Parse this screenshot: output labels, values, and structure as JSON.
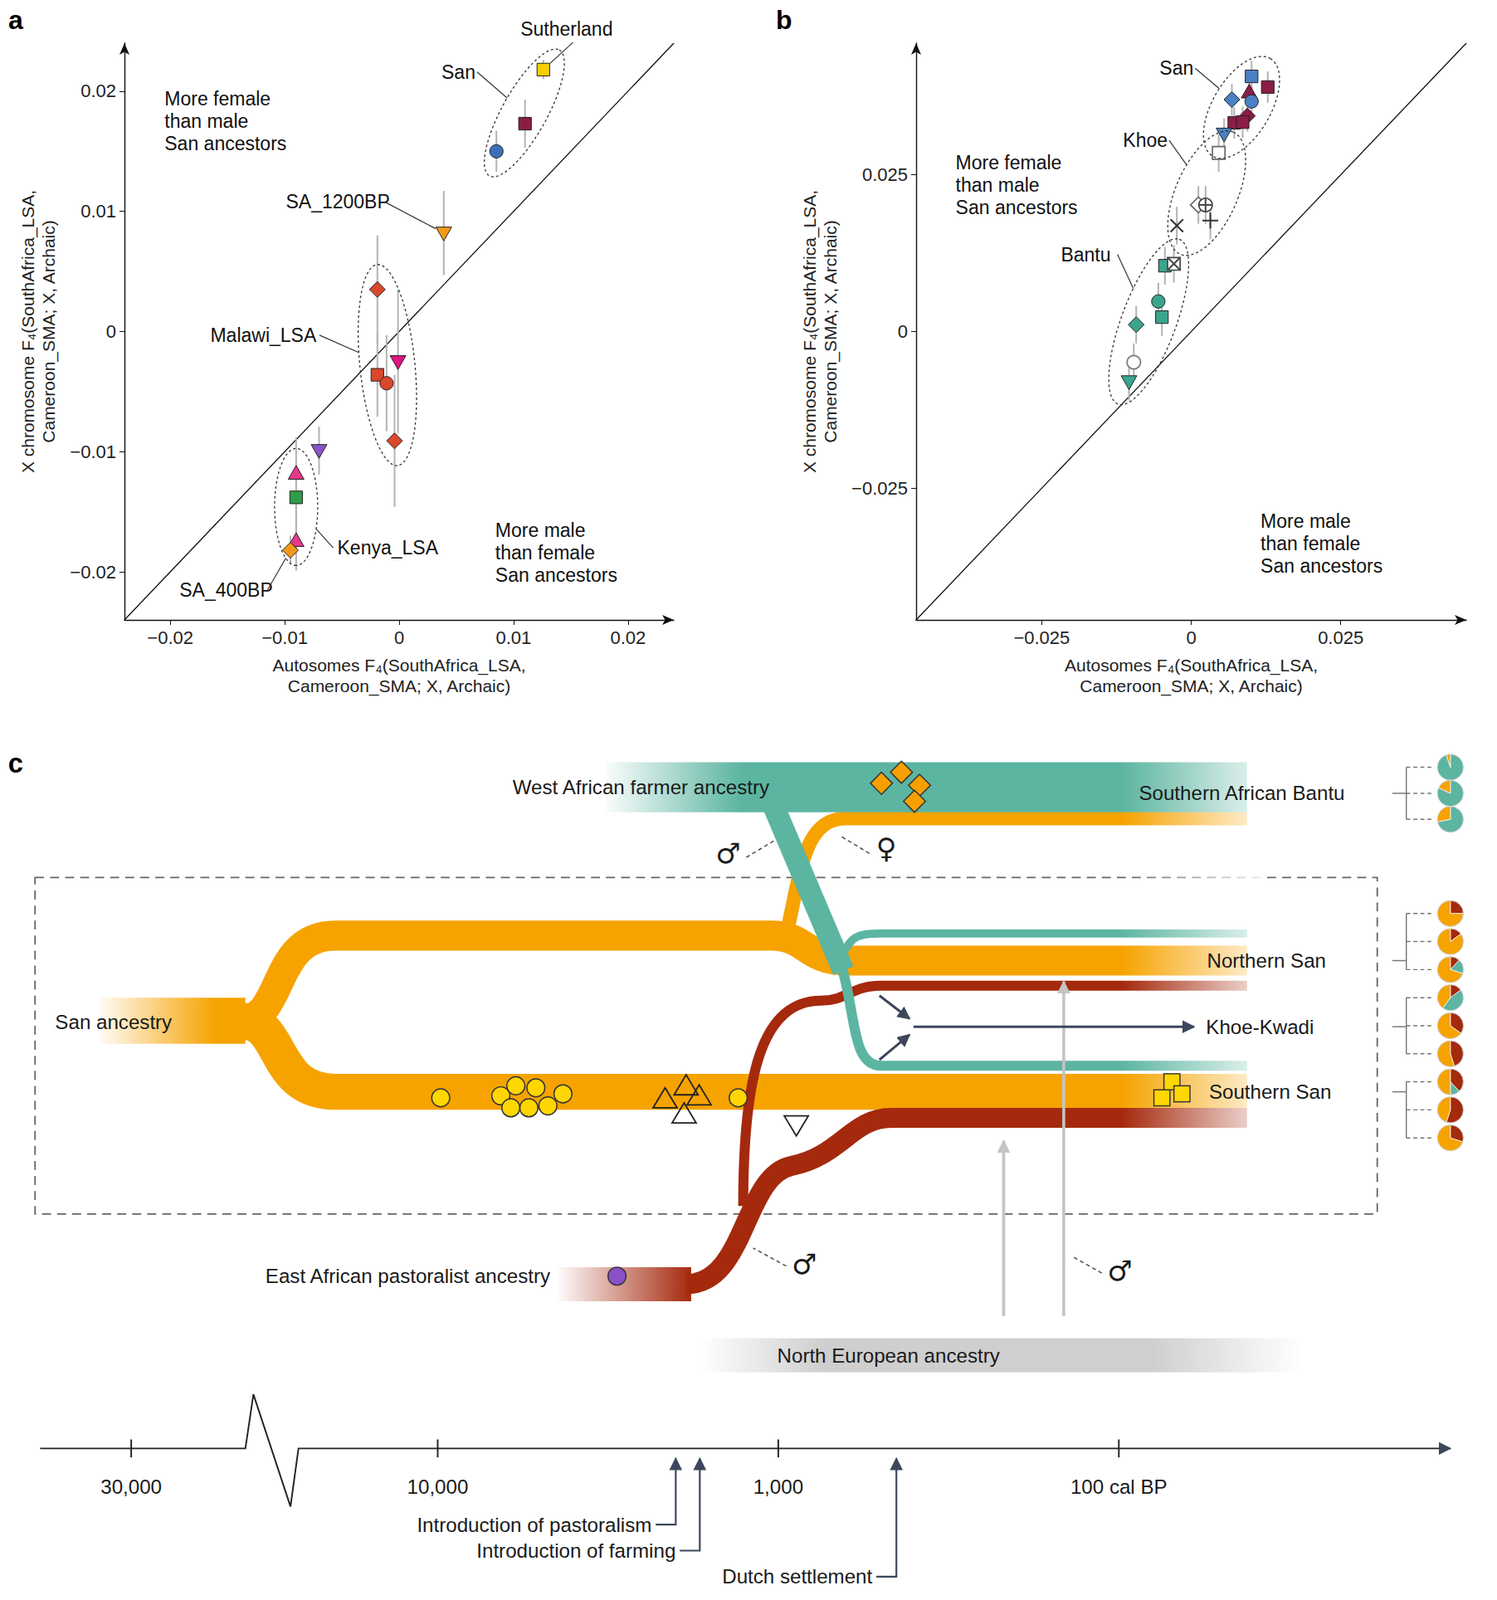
{
  "chart_data": [
    {
      "type": "scatter",
      "panel": "a",
      "x_label": "Autosomes F₄(SouthAfrica_LSA, Cameroon_SMA; X, Archaic)",
      "y_label": "X chromosome F₄(SouthAfrica_LSA, Cameroon_SMA; X, Archaic)",
      "xlim": [
        -0.024,
        0.024
      ],
      "ylim": [
        -0.024,
        0.024
      ],
      "xticks": [
        {
          "value": -0.02,
          "label": "−0.02"
        },
        {
          "value": -0.01,
          "label": "−0.01"
        },
        0,
        0.01,
        0.02
      ],
      "yticks": [
        {
          "value": -0.02,
          "label": "−0.02"
        },
        {
          "value": -0.01,
          "label": "−0.01"
        },
        0,
        0.01,
        0.02
      ],
      "grid": false,
      "points": [
        {
          "x": 0.0126,
          "y": 0.0218,
          "y_err": 0.0008,
          "color": "#f5cf00",
          "marker": "square"
        },
        {
          "x": 0.011,
          "y": 0.0173,
          "y_err": 0.002,
          "color": "#8b1c46",
          "marker": "square"
        },
        {
          "x": 0.0085,
          "y": 0.015,
          "y_err": 0.0017,
          "color": "#3b6fb6",
          "marker": "circle"
        },
        {
          "x": 0.0039,
          "y": 0.0082,
          "y_err": 0.0035,
          "color": "#f49a1a",
          "marker": "triangle-down"
        },
        {
          "x": -0.0019,
          "y": 0.0035,
          "y_err": 0.0045,
          "color": "#d9482b",
          "marker": "diamond"
        },
        {
          "x": -0.0019,
          "y": -0.0036,
          "y_err": 0.0035,
          "color": "#d9482b",
          "marker": "square"
        },
        {
          "x": -0.0011,
          "y": -0.0043,
          "y_err": 0.004,
          "color": "#d9482b",
          "marker": "circle"
        },
        {
          "x": -0.0001,
          "y": -0.0025,
          "y_err": 0.006,
          "color": "#e0137f",
          "marker": "triangle-down"
        },
        {
          "x": -0.0004,
          "y": -0.0091,
          "y_err": 0.0055,
          "color": "#d9482b",
          "marker": "diamond"
        },
        {
          "x": -0.007,
          "y": -0.0099,
          "y_err": 0.002,
          "color": "#8c52c8",
          "marker": "triangle-down"
        },
        {
          "x": -0.009,
          "y": -0.0118,
          "y_err": 0.003,
          "color": "#e33a8a",
          "marker": "triangle"
        },
        {
          "x": -0.009,
          "y": -0.0138,
          "y_err": 0.0025,
          "color": "#2e9d48",
          "marker": "square"
        },
        {
          "x": -0.009,
          "y": -0.0174,
          "y_err": 0.0025,
          "color": "#e33a8a",
          "marker": "triangle"
        },
        {
          "x": -0.0095,
          "y": -0.0182,
          "y_err": 0.0012,
          "color": "#f49a1a",
          "marker": "diamond"
        }
      ],
      "groups": [
        {
          "members": [
            0,
            1,
            2
          ]
        },
        {
          "members": [
            4,
            5,
            6,
            7,
            8
          ]
        },
        {
          "members": [
            10,
            11,
            12
          ]
        }
      ],
      "annotations": [
        {
          "text": "Sutherland",
          "x": 0.0106,
          "y": 0.0252,
          "point": 0
        },
        {
          "text": "San",
          "x": 0.0037,
          "y": 0.0216,
          "group": 0
        },
        {
          "text": "SA_1200BP",
          "x": -0.0099,
          "y": 0.0108,
          "point": 3
        },
        {
          "text": "Malawi_LSA",
          "x": -0.0165,
          "y": -0.0003,
          "group": 1
        },
        {
          "text": "Kenya_LSA",
          "x": -0.0054,
          "y": -0.018,
          "group": 2
        },
        {
          "text": "SA_400BP",
          "x": -0.0192,
          "y": -0.0215,
          "point": 13
        },
        {
          "text": "More female than male San ancestors",
          "x": -0.0205,
          "y": 0.0175
        },
        {
          "text": "More male than female San ancestors",
          "x": 0.0084,
          "y": -0.0184
        }
      ]
    },
    {
      "type": "scatter",
      "panel": "b",
      "x_label": "Autosomes F₄(SouthAfrica_LSA, Cameroon_SMA; X, Archaic)",
      "y_label": "X chromosome F₄(SouthAfrica_LSA, Cameroon_SMA; X, Archaic)",
      "xlim": [
        -0.046,
        0.046
      ],
      "ylim": [
        -0.046,
        0.046
      ],
      "xticks": [
        {
          "value": -0.025,
          "label": "−0.025"
        },
        0,
        0.025
      ],
      "yticks": [
        {
          "value": -0.025,
          "label": "−0.025"
        },
        0,
        0.025
      ],
      "grid": false,
      "points": [
        {
          "x": 0.0101,
          "y": 0.0407,
          "y_err": 0.0025,
          "color": "#4a80c4",
          "marker": "square"
        },
        {
          "x": 0.0068,
          "y": 0.037,
          "y_err": 0.0025,
          "color": "#4a80c4",
          "marker": "diamond"
        },
        {
          "x": 0.0128,
          "y": 0.039,
          "y_err": 0.0025,
          "color": "#8b1c46",
          "marker": "square"
        },
        {
          "x": 0.0097,
          "y": 0.0382,
          "y_err": 0.0025,
          "color": "#8b1c46",
          "marker": "triangle"
        },
        {
          "x": 0.0101,
          "y": 0.0367,
          "y_err": 0.0025,
          "color": "#4a80c4",
          "marker": "circle"
        },
        {
          "x": 0.0094,
          "y": 0.0344,
          "y_err": 0.0025,
          "color": "#8b1c46",
          "marker": "diamond"
        },
        {
          "x": 0.0072,
          "y": 0.0333,
          "y_err": 0.0025,
          "color": "#8b1c46",
          "marker": "square"
        },
        {
          "x": 0.0086,
          "y": 0.0334,
          "y_err": 0.0025,
          "color": "#8b1c46",
          "marker": "square"
        },
        {
          "x": 0.0055,
          "y": 0.0315,
          "y_err": 0.0025,
          "color": "#4a80c4",
          "marker": "triangle-down"
        },
        {
          "x": 0.0046,
          "y": 0.0285,
          "y_err": 0.003,
          "color": "#666666",
          "marker": "open-square"
        },
        {
          "x": 0.0012,
          "y": 0.0202,
          "y_err": 0.003,
          "color": "#666666",
          "marker": "open-diamond"
        },
        {
          "x": 0.0024,
          "y": 0.0202,
          "y_err": 0.003,
          "color": "#444444",
          "marker": "circle-plus"
        },
        {
          "x": -0.0024,
          "y": 0.0169,
          "y_err": 0.003,
          "color": "#333333",
          "marker": "x"
        },
        {
          "x": 0.0032,
          "y": 0.0177,
          "y_err": 0.003,
          "color": "#333333",
          "marker": "plus"
        },
        {
          "x": -0.0044,
          "y": 0.0105,
          "y_err": 0.003,
          "color": "#3aa58c",
          "marker": "square"
        },
        {
          "x": -0.0029,
          "y": 0.0108,
          "y_err": 0.003,
          "color": "#444444",
          "marker": "square-x"
        },
        {
          "x": -0.0055,
          "y": 0.0048,
          "y_err": 0.003,
          "color": "#3aa58c",
          "marker": "circle"
        },
        {
          "x": -0.0049,
          "y": 0.0023,
          "y_err": 0.003,
          "color": "#3aa58c",
          "marker": "square"
        },
        {
          "x": -0.0092,
          "y": 0.0011,
          "y_err": 0.003,
          "color": "#3aa58c",
          "marker": "diamond"
        },
        {
          "x": -0.0096,
          "y": -0.0049,
          "y_err": 0.003,
          "color": "#777777",
          "marker": "open-circle"
        },
        {
          "x": -0.0104,
          "y": -0.008,
          "y_err": 0.003,
          "color": "#3aa58c",
          "marker": "triangle-down"
        }
      ],
      "groups": [
        {
          "members": [
            0,
            1,
            2,
            3,
            4,
            5,
            6,
            7,
            8
          ]
        },
        {
          "members": [
            9,
            10,
            11,
            12,
            13
          ]
        },
        {
          "members": [
            14,
            15,
            16,
            17,
            18,
            19,
            20
          ]
        }
      ],
      "annotations": [
        {
          "text": "San",
          "x": -0.0053,
          "y": 0.042,
          "group": 0
        },
        {
          "text": "Khoe",
          "x": -0.0114,
          "y": 0.0305,
          "group": 1
        },
        {
          "text": "Bantu",
          "x": -0.0218,
          "y": 0.0123,
          "group": 2
        },
        {
          "text": "More female than male San ancestors",
          "x": -0.0394,
          "y": 0.0234
        },
        {
          "text": "More male than female San ancestors",
          "x": 0.0116,
          "y": -0.0338
        }
      ]
    }
  ],
  "diagram": {
    "panel": "c",
    "sources": [
      "San ancestry",
      "West African farmer ancestry",
      "East African pastoralist ancestry",
      "North European ancestry"
    ],
    "populations": [
      "Southern African Bantu",
      "Northern San",
      "Khoe-Kwadi",
      "Southern San"
    ],
    "sex_symbols": [
      "♂",
      "♀",
      "♂",
      "♂"
    ],
    "pie_colors": [
      "#f6a300",
      "#5cb5a1",
      "#a5290d"
    ],
    "pies": [
      [
        5,
        95,
        0
      ],
      [
        18,
        82,
        0
      ],
      [
        28,
        72,
        0
      ],
      [
        75,
        0,
        25
      ],
      [
        85,
        0,
        15
      ],
      [
        70,
        18,
        12
      ],
      [
        40,
        45,
        15
      ],
      [
        65,
        0,
        35
      ],
      [
        55,
        0,
        45
      ],
      [
        50,
        12,
        38
      ],
      [
        45,
        0,
        55
      ],
      [
        70,
        0,
        30
      ]
    ],
    "timeline": {
      "ticks": [
        {
          "value": 30000,
          "label": "30,000"
        },
        {
          "value": 10000,
          "label": "10,000"
        },
        {
          "value": 1000,
          "label": "1,000"
        },
        {
          "value": 100,
          "label": "100 cal BP"
        }
      ],
      "events": [
        {
          "label": "Introduction of pastoralism",
          "value": 2000
        },
        {
          "label": "Introduction of farming",
          "value": 1700
        },
        {
          "label": "Dutch settlement",
          "value": 450
        }
      ]
    }
  }
}
